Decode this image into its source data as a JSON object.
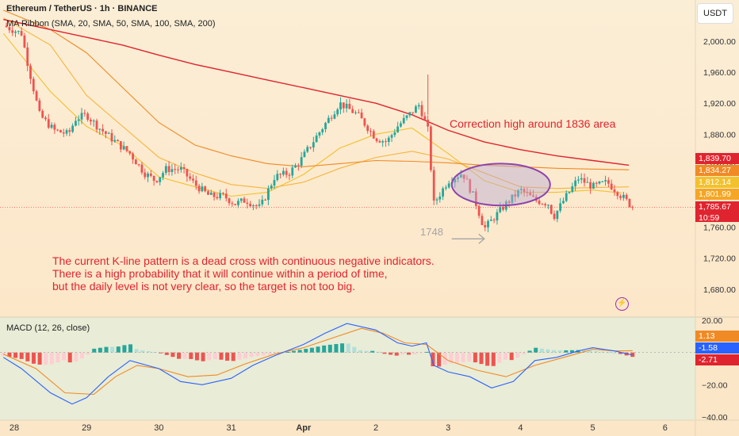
{
  "header": {
    "symbol": "Ethereum / TetherUS · 1h · BINANCE",
    "indicator": "MA Ribbon (SMA, 20, SMA, 50, SMA, 100, SMA, 200)",
    "currency_button": "USDT"
  },
  "annotations": {
    "main_text": "The current K-line pattern is a dead cross with continuous negative indicators.\nThere is a high probability that it will continue within a period of time,\nbut the daily level is not very clear, so the target is not too big.",
    "correction": "Correction high around 1836 area",
    "level_label": "1748"
  },
  "price_tags": [
    {
      "text": "1,839.70",
      "value": 1839.7,
      "color": "#e0242f"
    },
    {
      "text": "1,834.27",
      "value": 1834.27,
      "color": "#f08a24"
    },
    {
      "text": "1,812.14",
      "value": 1812.14,
      "color": "#f2c12e"
    },
    {
      "text": "1,801.99",
      "value": 1801.99,
      "color": "#f5a623"
    },
    {
      "text": "1,785.67",
      "value": 1785.67,
      "color": "#e0242f",
      "countdown": "10:59"
    }
  ],
  "macd_tags": [
    {
      "text": "1.13",
      "value": 1.13,
      "color": "#f08a24"
    },
    {
      "text": "-1.58",
      "value": -1.58,
      "color": "#2962ff"
    },
    {
      "text": "-2.71",
      "value": -2.71,
      "color": "#e0242f"
    }
  ],
  "colors": {
    "up": "#26a69a",
    "down": "#ef5350",
    "ma20": "#f2c12e",
    "ma50": "#f5b53c",
    "ma100": "#f08a24",
    "ma200": "#e0242f",
    "macd": "#2962ff",
    "signal": "#f08a24",
    "ellipse": "#8e44ad"
  },
  "chart_data": {
    "type": "candlestick",
    "x_labels": [
      "28",
      "29",
      "30",
      "31",
      "Apr",
      "2",
      "3",
      "4",
      "5",
      "6"
    ],
    "x_label_days": [
      0,
      1,
      2,
      3,
      4,
      5,
      6,
      7,
      8,
      9
    ],
    "price_axis": {
      "ticks": [
        1680,
        1720,
        1760,
        1800,
        1840,
        1880,
        1920,
        1960,
        2000
      ],
      "tick_labels": [
        "1,680.00",
        "1,720.00",
        "1,760.00",
        "1,800.00",
        "1,840.00",
        "1,880.00",
        "1,920.00",
        "1,960.00",
        "2,000.00"
      ],
      "range": [
        1646,
        2045
      ]
    },
    "price_path": [
      [
        -0.15,
        2020
      ],
      [
        0.1,
        2010
      ],
      [
        0.2,
        1965
      ],
      [
        0.35,
        1905
      ],
      [
        0.55,
        1885
      ],
      [
        0.75,
        1880
      ],
      [
        0.85,
        1900
      ],
      [
        1.0,
        1905
      ],
      [
        1.15,
        1890
      ],
      [
        1.4,
        1870
      ],
      [
        1.6,
        1855
      ],
      [
        1.8,
        1830
      ],
      [
        1.95,
        1820
      ],
      [
        2.1,
        1835
      ],
      [
        2.3,
        1835
      ],
      [
        2.5,
        1815
      ],
      [
        2.7,
        1800
      ],
      [
        2.9,
        1800
      ],
      [
        3.05,
        1790
      ],
      [
        3.2,
        1795
      ],
      [
        3.4,
        1785
      ],
      [
        3.6,
        1825
      ],
      [
        3.8,
        1830
      ],
      [
        3.95,
        1845
      ],
      [
        4.2,
        1880
      ],
      [
        4.5,
        1920
      ],
      [
        4.75,
        1905
      ],
      [
        5.0,
        1875
      ],
      [
        5.15,
        1870
      ],
      [
        5.3,
        1890
      ],
      [
        5.6,
        1918
      ],
      [
        5.72,
        1885
      ],
      [
        5.8,
        1790
      ],
      [
        6.0,
        1820
      ],
      [
        6.2,
        1830
      ],
      [
        6.35,
        1800
      ],
      [
        6.5,
        1758
      ],
      [
        6.8,
        1790
      ],
      [
        7.0,
        1808
      ],
      [
        7.2,
        1795
      ],
      [
        7.4,
        1790
      ],
      [
        7.45,
        1772
      ],
      [
        7.6,
        1795
      ],
      [
        7.8,
        1823
      ],
      [
        8.0,
        1812
      ],
      [
        8.2,
        1818
      ],
      [
        8.4,
        1800
      ],
      [
        8.55,
        1786
      ]
    ],
    "ma_series": [
      {
        "name": "SMA 20",
        "points": [
          [
            -0.15,
            2010
          ],
          [
            0.5,
            1935
          ],
          [
            1.0,
            1890
          ],
          [
            1.5,
            1865
          ],
          [
            2.0,
            1825
          ],
          [
            2.5,
            1812
          ],
          [
            3.0,
            1800
          ],
          [
            3.5,
            1805
          ],
          [
            4.0,
            1828
          ],
          [
            4.5,
            1862
          ],
          [
            5.0,
            1880
          ],
          [
            5.5,
            1888
          ],
          [
            6.0,
            1855
          ],
          [
            6.5,
            1820
          ],
          [
            7.0,
            1805
          ],
          [
            7.5,
            1805
          ],
          [
            8.0,
            1808
          ],
          [
            8.4,
            1804
          ]
        ]
      },
      {
        "name": "SMA 50",
        "points": [
          [
            -0.15,
            2030
          ],
          [
            0.5,
            1995
          ],
          [
            1.0,
            1930
          ],
          [
            1.5,
            1890
          ],
          [
            2.0,
            1850
          ],
          [
            2.5,
            1830
          ],
          [
            3.0,
            1815
          ],
          [
            3.5,
            1810
          ],
          [
            4.0,
            1818
          ],
          [
            4.5,
            1836
          ],
          [
            5.0,
            1850
          ],
          [
            5.5,
            1858
          ],
          [
            6.0,
            1848
          ],
          [
            6.5,
            1830
          ],
          [
            7.0,
            1812
          ],
          [
            7.5,
            1810
          ],
          [
            8.0,
            1811
          ],
          [
            8.5,
            1812
          ]
        ]
      },
      {
        "name": "SMA 100",
        "points": [
          [
            -0.15,
            2040
          ],
          [
            0.5,
            2015
          ],
          [
            1.0,
            1985
          ],
          [
            1.5,
            1940
          ],
          [
            2.0,
            1895
          ],
          [
            2.5,
            1866
          ],
          [
            3.0,
            1852
          ],
          [
            3.5,
            1842
          ],
          [
            4.0,
            1838
          ],
          [
            4.5,
            1842
          ],
          [
            5.0,
            1846
          ],
          [
            5.5,
            1845
          ],
          [
            6.0,
            1843
          ],
          [
            6.5,
            1840
          ],
          [
            7.0,
            1838
          ],
          [
            7.5,
            1836
          ],
          [
            8.0,
            1835
          ],
          [
            8.5,
            1834
          ]
        ]
      },
      {
        "name": "SMA 200",
        "points": [
          [
            -0.15,
            2028
          ],
          [
            0.5,
            2015
          ],
          [
            1.0,
            2005
          ],
          [
            1.5,
            1995
          ],
          [
            2.0,
            1982
          ],
          [
            2.5,
            1970
          ],
          [
            3.0,
            1960
          ],
          [
            3.5,
            1950
          ],
          [
            4.0,
            1940
          ],
          [
            4.5,
            1930
          ],
          [
            5.0,
            1920
          ],
          [
            5.5,
            1905
          ],
          [
            6.0,
            1885
          ],
          [
            6.5,
            1870
          ],
          [
            7.0,
            1860
          ],
          [
            7.5,
            1852
          ],
          [
            8.0,
            1846
          ],
          [
            8.5,
            1840
          ]
        ]
      }
    ],
    "macd_axis": {
      "ticks": [
        20,
        0,
        -20,
        -40
      ],
      "tick_labels": [
        "20.00",
        "",
        "−20.00",
        "−40.00"
      ],
      "range": [
        -42,
        22
      ]
    },
    "macd_line": [
      [
        -0.15,
        -3
      ],
      [
        0.1,
        -10
      ],
      [
        0.5,
        -25
      ],
      [
        0.8,
        -32
      ],
      [
        1.0,
        -28
      ],
      [
        1.3,
        -15
      ],
      [
        1.6,
        -5
      ],
      [
        2.0,
        -10
      ],
      [
        2.3,
        -18
      ],
      [
        2.6,
        -20
      ],
      [
        3.0,
        -16
      ],
      [
        3.3,
        -8
      ],
      [
        3.6,
        -2
      ],
      [
        4.0,
        5
      ],
      [
        4.3,
        12
      ],
      [
        4.6,
        18
      ],
      [
        5.0,
        14
      ],
      [
        5.3,
        6
      ],
      [
        5.5,
        4
      ],
      [
        5.7,
        6
      ],
      [
        5.8,
        -8
      ],
      [
        6.0,
        -12
      ],
      [
        6.3,
        -15
      ],
      [
        6.6,
        -22
      ],
      [
        6.9,
        -18
      ],
      [
        7.2,
        -5
      ],
      [
        7.5,
        -3
      ],
      [
        7.8,
        1
      ],
      [
        8.0,
        3
      ],
      [
        8.3,
        1
      ],
      [
        8.55,
        -1.58
      ]
    ],
    "signal_line": [
      [
        -0.15,
        -1
      ],
      [
        0.3,
        -10
      ],
      [
        0.7,
        -25
      ],
      [
        1.1,
        -26
      ],
      [
        1.4,
        -15
      ],
      [
        1.7,
        -8
      ],
      [
        2.0,
        -10
      ],
      [
        2.4,
        -15
      ],
      [
        2.8,
        -14
      ],
      [
        3.2,
        -7
      ],
      [
        3.6,
        -1
      ],
      [
        4.0,
        3
      ],
      [
        4.4,
        9
      ],
      [
        4.8,
        15
      ],
      [
        5.1,
        12
      ],
      [
        5.4,
        6
      ],
      [
        5.7,
        5
      ],
      [
        6.0,
        -5
      ],
      [
        6.4,
        -11
      ],
      [
        6.8,
        -15
      ],
      [
        7.2,
        -8
      ],
      [
        7.6,
        -3
      ],
      [
        8.0,
        2
      ],
      [
        8.3,
        1
      ],
      [
        8.55,
        1.13
      ]
    ],
    "histogram_last": -2.71,
    "highlight": {
      "label": "Correction high around 1836 area",
      "center_day": 6.73,
      "center_price": 1815,
      "half_width_days": 0.68,
      "half_height_price": 27
    },
    "support_level": 1748
  }
}
